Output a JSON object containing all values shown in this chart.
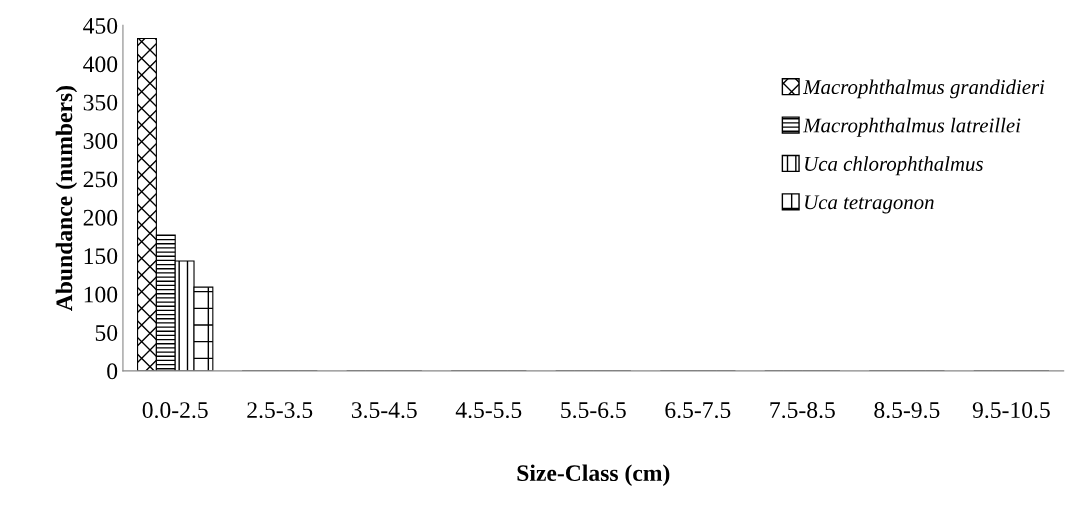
{
  "chart_data": {
    "type": "bar",
    "xlabel": "Size-Class (cm)",
    "ylabel": "Abundance (numbers)",
    "categories": [
      "0.0-2.5",
      "2.5-3.5",
      "3.5-4.5",
      "4.5-5.5",
      "5.5-6.5",
      "6.5-7.5",
      "7.5-8.5",
      "8.5-9.5",
      "9.5-10.5"
    ],
    "series": [
      {
        "name": "Macrophthalmus grandidieri",
        "color": "#000000",
        "values": [
          433,
          0,
          0,
          0,
          0,
          0,
          0,
          0,
          0
        ]
      },
      {
        "name": "Macrophthalmus latreillei",
        "color": "#000000",
        "values": [
          177,
          0,
          0,
          0,
          0,
          0,
          0,
          0,
          0
        ]
      },
      {
        "name": "Uca chlorophthalmus",
        "color": "#000000",
        "values": [
          143,
          0,
          0,
          0,
          0,
          0,
          0,
          0,
          0
        ]
      },
      {
        "name": "Uca tetragonon",
        "color": "#000000",
        "values": [
          109,
          0,
          0,
          0,
          0,
          0,
          0,
          0,
          0
        ]
      }
    ],
    "ylim": [
      0,
      450
    ],
    "yticks": [
      0,
      50,
      100,
      150,
      200,
      250,
      300,
      350,
      400,
      450
    ],
    "grid": false,
    "legend": "top right"
  }
}
